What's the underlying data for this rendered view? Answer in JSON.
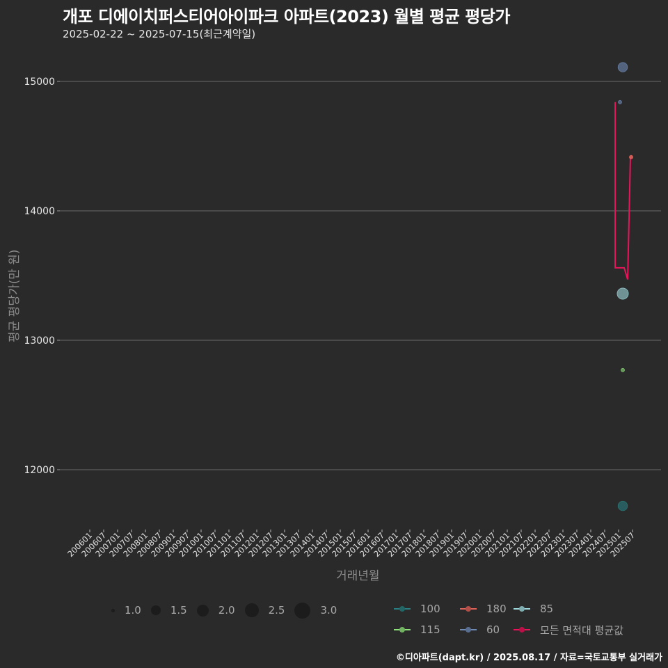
{
  "header": {
    "title": "개포 디에이치퍼스티어아이파크 아파트(2023) 월별 평균 평당가",
    "subtitle": "2025-02-22 ~ 2025-07-15(최근계약일)"
  },
  "axes": {
    "ylabel": "평균 평당가(만 원)",
    "xlabel": "거래년월"
  },
  "legend": {
    "size": [
      {
        "label": "1.0",
        "d": 5
      },
      {
        "label": "1.5",
        "d": 14
      },
      {
        "label": "2.0",
        "d": 17
      },
      {
        "label": "2.5",
        "d": 20
      },
      {
        "label": "3.0",
        "d": 23
      }
    ],
    "colors": [
      {
        "label": "100",
        "color": "#2a7f80"
      },
      {
        "label": "180",
        "color": "#e0635a"
      },
      {
        "label": "85",
        "color": "#9fd8dc"
      },
      {
        "label": "115",
        "color": "#8ee07a"
      },
      {
        "label": "60",
        "color": "#6f8bb5"
      },
      {
        "label": "모든 면적대 평균값",
        "color": "#e8145a"
      }
    ]
  },
  "caption": "©디아파트(dapt.kr) / 2025.08.17 / 자료=국토교통부 실거래가",
  "chart_data": {
    "type": "scatter+line",
    "title": "개포 디에이치퍼스티어아이파크 아파트(2023) 월별 평균 평당가",
    "subtitle": "2025-02-22 ~ 2025-07-15(최근계약일)",
    "xlabel": "거래년월",
    "ylabel": "평균 평당가(만 원)",
    "ylim": [
      11550,
      15250
    ],
    "yticks": [
      12000,
      13000,
      14000,
      15000
    ],
    "grid": "horizontal major lines",
    "x_ticks": [
      "200601",
      "200607",
      "200701",
      "200707",
      "200801",
      "200807",
      "200901",
      "200907",
      "201001",
      "201007",
      "201101",
      "201107",
      "201201",
      "201207",
      "201301",
      "201307",
      "201401",
      "201407",
      "201501",
      "201507",
      "201601",
      "201607",
      "201701",
      "201707",
      "201801",
      "201807",
      "201901",
      "201907",
      "202001",
      "202007",
      "202101",
      "202107",
      "202201",
      "202207",
      "202301",
      "202307",
      "202401",
      "202407",
      "202501",
      "202507"
    ],
    "legend_position": "bottom",
    "series": [
      {
        "name": "60",
        "color": "#6f8bb5",
        "points": [
          {
            "x": "202503",
            "y": 15110,
            "size": 2.0
          },
          {
            "x": "202502",
            "y": 14840,
            "size": 1.0
          }
        ]
      },
      {
        "name": "85",
        "color": "#9fd8dc",
        "points": [
          {
            "x": "202503",
            "y": 13360,
            "size": 2.3
          }
        ]
      },
      {
        "name": "115",
        "color": "#8ee07a",
        "points": [
          {
            "x": "202503",
            "y": 12770,
            "size": 1.0
          }
        ]
      },
      {
        "name": "100",
        "color": "#2a7f80",
        "points": [
          {
            "x": "202503",
            "y": 11720,
            "size": 2.0
          }
        ]
      },
      {
        "name": "180",
        "color": "#e0635a",
        "points": []
      },
      {
        "name": "모든 면적대 평균값",
        "color": "#e8145a",
        "type": "line",
        "points": [
          {
            "x": "202502",
            "y": 14840
          },
          {
            "x": "202502",
            "y": 13560
          },
          {
            "x": "202505",
            "y": 13560
          },
          {
            "x": "202506",
            "y": 13470
          },
          {
            "x": "202507",
            "y": 14415
          }
        ]
      }
    ]
  }
}
